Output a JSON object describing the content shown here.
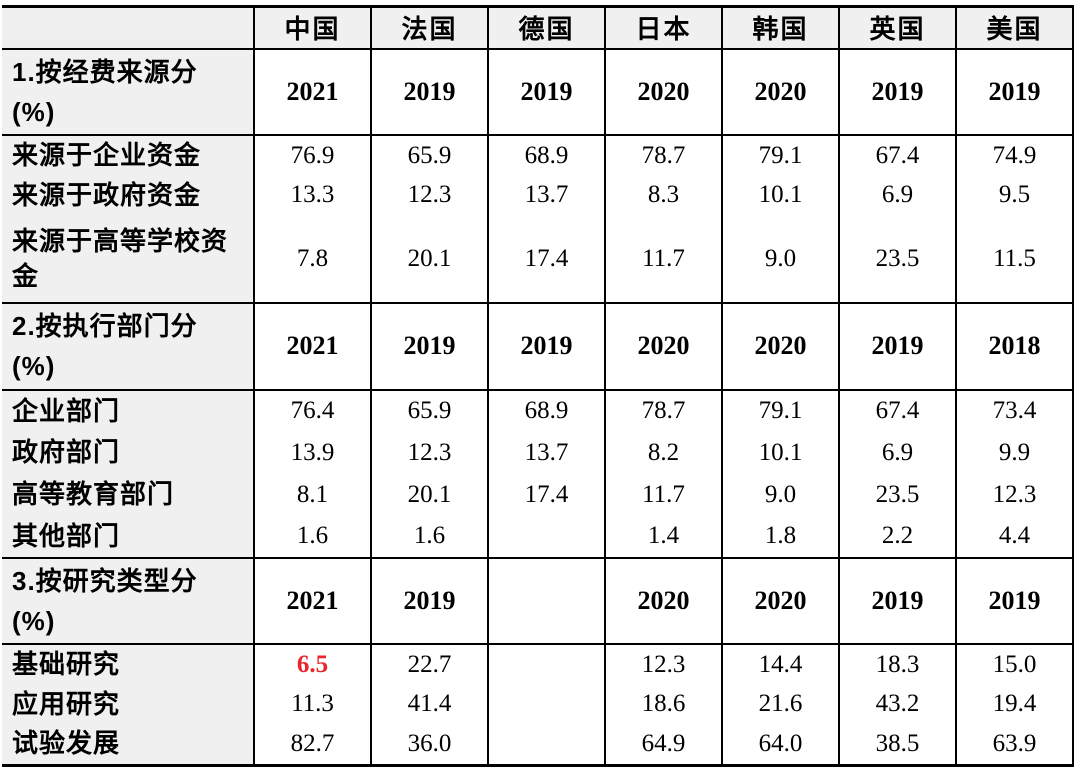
{
  "table": {
    "kind": "comparison-table",
    "colors": {
      "header_bg": "#f0f0f0",
      "border": "#000000",
      "highlight_red": "#e8252a"
    },
    "corner_label": "",
    "countries": [
      "中国",
      "法国",
      "德国",
      "日本",
      "韩国",
      "英国",
      "美国"
    ],
    "sections": [
      {
        "title": "1.按经费来源分\n(%)",
        "years": [
          "2021",
          "2019",
          "2019",
          "2020",
          "2020",
          "2019",
          "2019"
        ],
        "rows": [
          {
            "label": "来源于企业资金",
            "values": [
              "76.9",
              "65.9",
              "68.9",
              "78.7",
              "79.1",
              "67.4",
              "74.9"
            ]
          },
          {
            "label": "来源于政府资金",
            "values": [
              "13.3",
              "12.3",
              "13.7",
              "8.3",
              "10.1",
              "6.9",
              "9.5"
            ]
          },
          {
            "label": "来源于高等学校资金",
            "values": [
              "7.8",
              "20.1",
              "17.4",
              "11.7",
              "9.0",
              "23.5",
              "11.5"
            ],
            "tall": true
          }
        ]
      },
      {
        "title": "2.按执行部门分\n(%)",
        "years": [
          "2021",
          "2019",
          "2019",
          "2020",
          "2020",
          "2019",
          "2018"
        ],
        "rows": [
          {
            "label": "企业部门",
            "values": [
              "76.4",
              "65.9",
              "68.9",
              "78.7",
              "79.1",
              "67.4",
              "73.4"
            ],
            "mid": true
          },
          {
            "label": "政府部门",
            "values": [
              "13.9",
              "12.3",
              "13.7",
              "8.2",
              "10.1",
              "6.9",
              "9.9"
            ],
            "mid": true
          },
          {
            "label": "高等教育部门",
            "values": [
              "8.1",
              "20.1",
              "17.4",
              "11.7",
              "9.0",
              "23.5",
              "12.3"
            ],
            "mid": true
          },
          {
            "label": "其他部门",
            "values": [
              "1.6",
              "1.6",
              "",
              "1.4",
              "1.8",
              "2.2",
              "4.4"
            ],
            "mid": true
          }
        ]
      },
      {
        "title": "3.按研究类型分\n(%)",
        "years": [
          "2021",
          "2019",
          "",
          "2020",
          "2020",
          "2019",
          "2019"
        ],
        "rows": [
          {
            "label": "基础研究",
            "values": [
              "6.5",
              "22.7",
              "",
              "12.3",
              "14.4",
              "18.3",
              "15.0"
            ],
            "red_indexes": [
              0
            ]
          },
          {
            "label": "应用研究",
            "values": [
              "11.3",
              "41.4",
              "",
              "18.6",
              "21.6",
              "43.2",
              "19.4"
            ]
          },
          {
            "label": "试验发展",
            "values": [
              "82.7",
              "36.0",
              "",
              "64.9",
              "64.0",
              "38.5",
              "63.9"
            ]
          }
        ]
      }
    ]
  }
}
